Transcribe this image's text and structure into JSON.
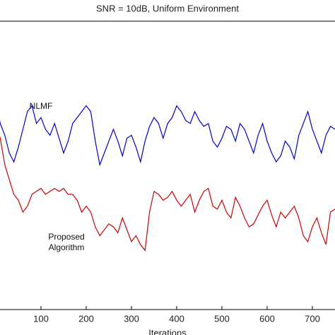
{
  "chart_data": {
    "type": "line",
    "title": "SNR = 10dB, Uniform Environment",
    "xlabel": "Iterations",
    "annotations": [
      "NLMF",
      "Proposed Algorithm"
    ],
    "x": [
      0,
      10,
      20,
      30,
      40,
      50,
      60,
      70,
      80,
      90,
      100,
      110,
      120,
      130,
      140,
      150,
      160,
      170,
      180,
      190,
      200,
      210,
      220,
      230,
      240,
      250,
      260,
      270,
      280,
      290,
      300,
      310,
      320,
      330,
      340,
      350,
      360,
      370,
      380,
      390,
      400,
      410,
      420,
      430,
      440,
      450,
      460,
      470,
      480,
      490,
      500,
      510,
      520,
      530,
      540,
      550,
      560,
      570,
      580,
      590,
      600,
      610,
      620,
      630,
      640,
      650,
      660,
      670,
      680,
      690,
      700,
      710,
      720,
      730,
      740,
      750
    ],
    "series": [
      {
        "name": "NLMF",
        "color": "#0000cc",
        "values": [
          0.7,
          0.63,
          0.59,
          0.53,
          0.5,
          0.55,
          0.61,
          0.67,
          0.69,
          0.63,
          0.65,
          0.61,
          0.59,
          0.63,
          0.58,
          0.53,
          0.57,
          0.63,
          0.65,
          0.67,
          0.69,
          0.67,
          0.57,
          0.49,
          0.53,
          0.57,
          0.61,
          0.57,
          0.52,
          0.58,
          0.59,
          0.55,
          0.5,
          0.57,
          0.62,
          0.65,
          0.63,
          0.58,
          0.63,
          0.65,
          0.69,
          0.67,
          0.64,
          0.63,
          0.67,
          0.64,
          0.62,
          0.63,
          0.57,
          0.55,
          0.58,
          0.62,
          0.61,
          0.57,
          0.63,
          0.61,
          0.57,
          0.53,
          0.59,
          0.63,
          0.57,
          0.53,
          0.5,
          0.52,
          0.57,
          0.55,
          0.51,
          0.59,
          0.63,
          0.67,
          0.61,
          0.57,
          0.53,
          0.59,
          0.62,
          0.61
        ]
      },
      {
        "name": "Proposed Algorithm",
        "color": "#cc0000",
        "values": [
          0.62,
          0.58,
          0.49,
          0.44,
          0.39,
          0.37,
          0.33,
          0.35,
          0.39,
          0.4,
          0.41,
          0.39,
          0.4,
          0.41,
          0.4,
          0.41,
          0.39,
          0.39,
          0.37,
          0.33,
          0.35,
          0.33,
          0.28,
          0.25,
          0.27,
          0.29,
          0.28,
          0.26,
          0.31,
          0.27,
          0.23,
          0.25,
          0.22,
          0.2,
          0.33,
          0.4,
          0.39,
          0.37,
          0.38,
          0.4,
          0.37,
          0.35,
          0.37,
          0.39,
          0.33,
          0.37,
          0.4,
          0.41,
          0.35,
          0.34,
          0.37,
          0.33,
          0.31,
          0.38,
          0.35,
          0.31,
          0.28,
          0.29,
          0.32,
          0.35,
          0.37,
          0.32,
          0.28,
          0.33,
          0.31,
          0.33,
          0.35,
          0.31,
          0.25,
          0.23,
          0.28,
          0.31,
          0.26,
          0.22,
          0.33,
          0.34
        ]
      }
    ],
    "xlim": [
      0,
      750
    ],
    "xticks": [
      100,
      200,
      300,
      400,
      500,
      600,
      700
    ],
    "ylim": [
      0,
      1
    ]
  }
}
